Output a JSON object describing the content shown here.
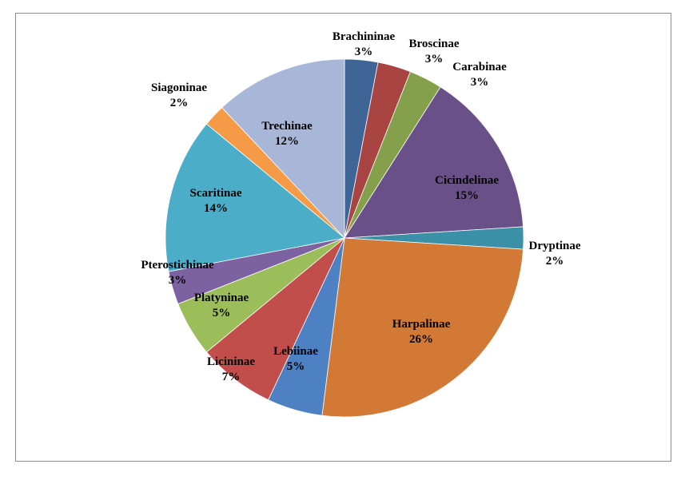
{
  "chart_data": {
    "type": "pie",
    "title": "",
    "start_angle_deg": 0,
    "direction": "clockwise",
    "slices": [
      {
        "label": "Brachininae",
        "value": 3,
        "pct_label": "3%",
        "color": "#3f6597"
      },
      {
        "label": "Broscinae",
        "value": 3,
        "pct_label": "3%",
        "color": "#a84442"
      },
      {
        "label": "Carabinae",
        "value": 3,
        "pct_label": "3%",
        "color": "#84a04b"
      },
      {
        "label": "Cicindelinae",
        "value": 15,
        "pct_label": "15%",
        "color": "#6a5088"
      },
      {
        "label": "Dryptinae",
        "value": 2,
        "pct_label": "2%",
        "color": "#3a90a6"
      },
      {
        "label": "Harpalinae",
        "value": 26,
        "pct_label": "26%",
        "color": "#d27935"
      },
      {
        "label": "Lebiinae",
        "value": 5,
        "pct_label": "5%",
        "color": "#4e80c4"
      },
      {
        "label": "Licininae",
        "value": 7,
        "pct_label": "7%",
        "color": "#c24e4c"
      },
      {
        "label": "Platyninae",
        "value": 5,
        "pct_label": "5%",
        "color": "#9cbe5a"
      },
      {
        "label": "Pterostichinae",
        "value": 3,
        "pct_label": "3%",
        "color": "#7d62a2"
      },
      {
        "label": "Scaritinae",
        "value": 14,
        "pct_label": "14%",
        "color": "#4badc8"
      },
      {
        "label": "Siagoninae",
        "value": 2,
        "pct_label": "2%",
        "color": "#f59a46"
      },
      {
        "label": "Trechinae",
        "value": 12,
        "pct_label": "12%",
        "color": "#a8b7d8"
      }
    ]
  }
}
